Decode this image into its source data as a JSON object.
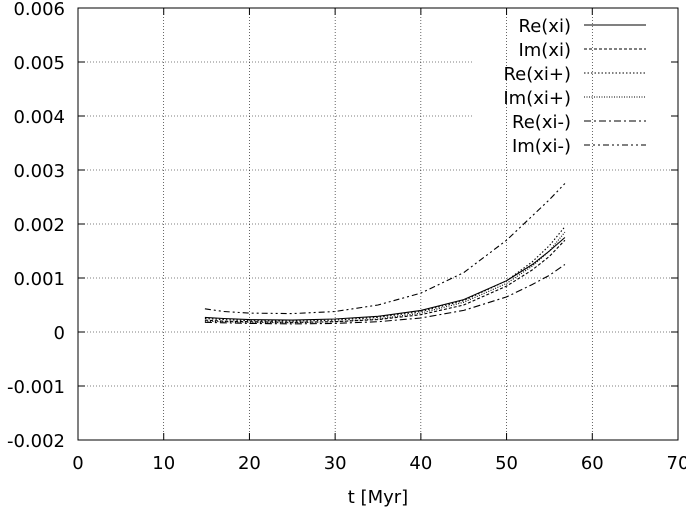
{
  "chart_data": {
    "type": "line",
    "title": "",
    "xlabel": "t [Myr]",
    "ylabel": "",
    "xlim": [
      0,
      70
    ],
    "ylim": [
      -0.002,
      0.006
    ],
    "xticks": [
      0,
      10,
      20,
      30,
      40,
      50,
      60,
      70
    ],
    "yticks": [
      -0.002,
      -0.001,
      0,
      0.001,
      0.002,
      0.003,
      0.004,
      0.005,
      0.006
    ],
    "x_tick_labels": [
      "0",
      "10",
      "20",
      "30",
      "40",
      "50",
      "60",
      "70"
    ],
    "y_tick_labels": [
      "-0.002",
      "-0.001",
      "0",
      "0.001",
      "0.002",
      "0.003",
      "0.004",
      "0.005",
      "0.006"
    ],
    "grid": true,
    "legend_position": "top-right",
    "series": [
      {
        "name": "Re(xi)",
        "dash": "",
        "x": [
          14.8,
          17,
          20,
          25,
          30,
          35,
          40,
          45,
          50,
          53,
          55,
          56.8
        ],
        "y": [
          0.00027,
          0.00025,
          0.00023,
          0.00022,
          0.00024,
          0.00029,
          0.0004,
          0.0006,
          0.00095,
          0.00125,
          0.0015,
          0.00175
        ]
      },
      {
        "name": "Im(xi)",
        "dash": "3,2",
        "x": [
          14.8,
          17,
          20,
          25,
          30,
          35,
          40,
          45,
          50,
          53,
          55,
          56.8
        ],
        "y": [
          0.00022,
          0.0002,
          0.00019,
          0.00018,
          0.00019,
          0.00023,
          0.00032,
          0.0005,
          0.00085,
          0.00115,
          0.0014,
          0.0017
        ]
      },
      {
        "name": "Re(xi+)",
        "dash": "1.5,2",
        "x": [
          14.8,
          17,
          20,
          25,
          30,
          35,
          40,
          45,
          50,
          53,
          55,
          56.8
        ],
        "y": [
          0.00025,
          0.00023,
          0.00021,
          0.0002,
          0.00022,
          0.00027,
          0.00038,
          0.00058,
          0.00095,
          0.0013,
          0.0016,
          0.00195
        ]
      },
      {
        "name": "Im(xi+)",
        "dash": "1,1.5",
        "x": [
          14.8,
          17,
          20,
          25,
          30,
          35,
          40,
          45,
          50,
          53,
          55,
          56.8
        ],
        "y": [
          0.0002,
          0.00019,
          0.00018,
          0.00017,
          0.00019,
          0.00024,
          0.00035,
          0.00055,
          0.0009,
          0.00122,
          0.0015,
          0.00185
        ]
      },
      {
        "name": "Re(xi-)",
        "dash": "7,3,2,3",
        "x": [
          14.8,
          17,
          20,
          25,
          30,
          35,
          40,
          45,
          50,
          53,
          55,
          56.8
        ],
        "y": [
          0.00018,
          0.00017,
          0.00016,
          0.00015,
          0.00016,
          0.00019,
          0.00026,
          0.0004,
          0.00065,
          0.00088,
          0.00105,
          0.00125
        ]
      },
      {
        "name": "Im(xi-)",
        "dash": "6,3,2,3,2,3",
        "x": [
          14.8,
          17,
          20,
          25,
          30,
          35,
          40,
          45,
          50,
          53,
          55,
          56.8
        ],
        "y": [
          0.00043,
          0.00038,
          0.00035,
          0.00034,
          0.00038,
          0.0005,
          0.00072,
          0.0011,
          0.0017,
          0.00215,
          0.00245,
          0.00275
        ]
      }
    ]
  }
}
